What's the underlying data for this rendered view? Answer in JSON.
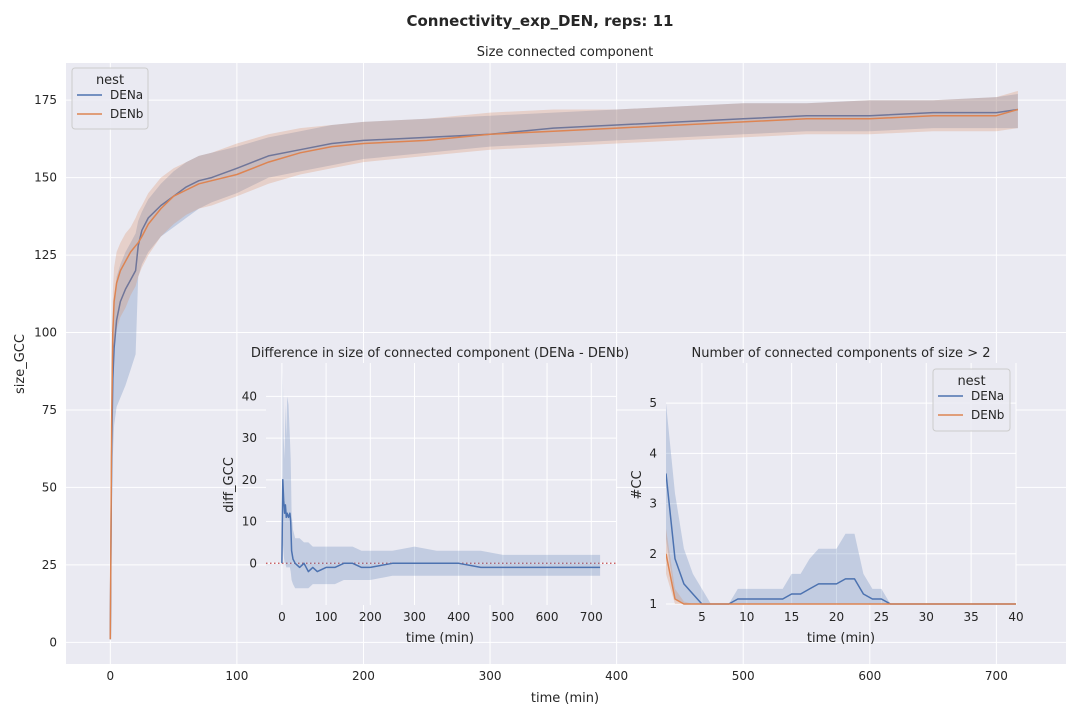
{
  "figure": {
    "suptitle": "Connectivity_exp_DEN, reps: 11"
  },
  "colors": {
    "DENa": "#4c72b0",
    "DENb": "#dd8452",
    "background": "#eaeaf2",
    "grid": "#ffffff"
  },
  "chart_data": [
    {
      "id": "main",
      "type": "line",
      "title": "Size connected component",
      "xlabel": "time (min)",
      "ylabel": "size_GCC",
      "xlim": [
        -35,
        755
      ],
      "ylim": [
        -7,
        187
      ],
      "xticks": [
        0,
        100,
        200,
        300,
        400,
        500,
        600,
        700
      ],
      "yticks": [
        0,
        25,
        50,
        75,
        100,
        125,
        150,
        175
      ],
      "grid": true,
      "legend": {
        "title": "nest",
        "placement": "upper-left",
        "entries": [
          "DENa",
          "DENb"
        ]
      },
      "series": [
        {
          "name": "DENa",
          "x": [
            0,
            1,
            2,
            3,
            5,
            8,
            12,
            16,
            20,
            22,
            25,
            30,
            40,
            50,
            60,
            70,
            80,
            100,
            125,
            150,
            175,
            200,
            250,
            300,
            350,
            400,
            450,
            500,
            550,
            600,
            650,
            700,
            717
          ],
          "y": [
            1,
            60,
            85,
            95,
            104,
            110,
            114,
            117,
            120,
            128,
            133,
            137,
            141,
            144,
            147,
            149,
            150,
            153,
            157,
            159,
            161,
            162,
            163,
            164,
            166,
            167,
            168,
            169,
            170,
            170,
            171,
            171,
            172
          ],
          "lower": [
            1,
            40,
            60,
            70,
            76,
            79,
            83,
            88,
            93,
            118,
            122,
            126,
            131,
            134,
            137,
            140,
            142,
            145,
            150,
            152,
            154,
            156,
            158,
            160,
            161,
            162,
            163,
            164,
            165,
            165,
            166,
            166,
            166
          ],
          "upper": [
            1,
            78,
            102,
            110,
            118,
            122,
            126,
            129,
            132,
            136,
            139,
            143,
            148,
            152,
            155,
            157,
            158,
            160,
            163,
            165,
            167,
            168,
            169,
            170,
            171,
            172,
            173,
            174,
            174,
            175,
            175,
            176,
            177
          ]
        },
        {
          "name": "DENb",
          "x": [
            0,
            1,
            2,
            3,
            5,
            8,
            12,
            16,
            20,
            22,
            25,
            30,
            40,
            50,
            60,
            70,
            80,
            100,
            125,
            150,
            175,
            200,
            250,
            300,
            350,
            400,
            450,
            500,
            550,
            600,
            650,
            700,
            717
          ],
          "y": [
            1,
            70,
            100,
            110,
            116,
            120,
            123,
            126,
            128,
            129,
            131,
            135,
            140,
            144,
            146,
            148,
            149,
            151,
            155,
            158,
            160,
            161,
            162,
            164,
            165,
            166,
            167,
            168,
            169,
            169,
            170,
            170,
            172
          ],
          "lower": [
            1,
            55,
            85,
            95,
            101,
            105,
            108,
            112,
            115,
            118,
            121,
            125,
            131,
            135,
            138,
            140,
            141,
            144,
            148,
            151,
            153,
            155,
            157,
            159,
            160,
            161,
            162,
            163,
            164,
            164,
            165,
            165,
            166
          ],
          "upper": [
            1,
            85,
            113,
            121,
            126,
            129,
            132,
            134,
            137,
            139,
            141,
            145,
            150,
            153,
            155,
            157,
            158,
            161,
            164,
            166,
            167,
            168,
            169,
            171,
            172,
            172,
            173,
            174,
            174,
            175,
            175,
            176,
            178
          ]
        }
      ]
    },
    {
      "id": "diff",
      "type": "line",
      "title": "Difference in size of connected component (DENa - DENb)",
      "xlabel": "time (min)",
      "ylabel": "diff_GCC",
      "xlim": [
        -36,
        756
      ],
      "ylim": [
        -10,
        48
      ],
      "xticks": [
        0,
        100,
        200,
        300,
        400,
        500,
        600,
        700
      ],
      "yticks": [
        0,
        10,
        20,
        30,
        40
      ],
      "grid": true,
      "zero_line": {
        "y": 0,
        "color": "#c44e52",
        "style": "dotted"
      },
      "series": [
        {
          "name": "DENa",
          "x": [
            0,
            2,
            4,
            6,
            8,
            10,
            12,
            15,
            18,
            20,
            22,
            25,
            30,
            40,
            50,
            60,
            70,
            80,
            100,
            120,
            140,
            160,
            180,
            200,
            250,
            300,
            350,
            400,
            450,
            500,
            550,
            600,
            650,
            700,
            720
          ],
          "y": [
            0,
            20,
            15,
            12,
            14,
            11,
            12,
            11,
            12,
            10,
            3,
            1,
            0,
            -1,
            0,
            -2,
            -1,
            -2,
            -1,
            -1,
            0,
            0,
            -1,
            -1,
            0,
            0,
            0,
            0,
            -1,
            -1,
            -1,
            -1,
            -1,
            -1,
            -1
          ],
          "lower": [
            0,
            5,
            2,
            0,
            0,
            -1,
            -1,
            -1,
            -1,
            -2,
            -4,
            -5,
            -6,
            -6,
            -6,
            -6,
            -5,
            -5,
            -5,
            -5,
            -4,
            -4,
            -4,
            -4,
            -3,
            -3,
            -3,
            -3,
            -3,
            -3,
            -3,
            -3,
            -3,
            -3,
            -3
          ],
          "upper": [
            0,
            46,
            30,
            25,
            38,
            30,
            40,
            38,
            30,
            25,
            12,
            8,
            6,
            6,
            5,
            5,
            4,
            4,
            4,
            4,
            4,
            4,
            3,
            3,
            3,
            4,
            3,
            3,
            3,
            2,
            2,
            2,
            2,
            2,
            2
          ]
        }
      ]
    },
    {
      "id": "count",
      "type": "line",
      "title": "Number of connected components of size > 2",
      "xlabel": "time (min)",
      "ylabel": "#CC",
      "xlim": [
        1,
        40
      ],
      "ylim": [
        0.98,
        5.8
      ],
      "xticks": [
        5,
        10,
        15,
        20,
        25,
        30,
        35,
        40
      ],
      "yticks": [
        1,
        2,
        3,
        4,
        5
      ],
      "grid": true,
      "legend": {
        "title": "nest",
        "placement": "upper-right",
        "entries": [
          "DENa",
          "DENb"
        ]
      },
      "series": [
        {
          "name": "DENa",
          "x": [
            1,
            2,
            3,
            4,
            5,
            6,
            7,
            8,
            9,
            10,
            11,
            12,
            13,
            14,
            15,
            16,
            17,
            18,
            19,
            20,
            21,
            22,
            23,
            24,
            25,
            26,
            27,
            28,
            29,
            30,
            31,
            32,
            33,
            34,
            35,
            36,
            37,
            38,
            39,
            40
          ],
          "y": [
            3.6,
            1.9,
            1.4,
            1.2,
            1.0,
            1.0,
            1.0,
            1.0,
            1.1,
            1.1,
            1.1,
            1.1,
            1.1,
            1.1,
            1.2,
            1.2,
            1.3,
            1.4,
            1.4,
            1.4,
            1.5,
            1.5,
            1.2,
            1.1,
            1.1,
            1.0,
            1.0,
            1.0,
            1.0,
            1.0,
            1.0,
            1.0,
            1.0,
            1.0,
            1.0,
            1.0,
            1.0,
            1.0,
            1.0,
            1.0
          ],
          "lower": [
            2.3,
            1.1,
            1.0,
            1.0,
            1.0,
            1.0,
            1.0,
            1.0,
            1.0,
            1.0,
            1.0,
            1.0,
            1.0,
            1.0,
            1.0,
            1.0,
            1.0,
            1.0,
            1.0,
            1.0,
            1.0,
            1.0,
            1.0,
            1.0,
            1.0,
            1.0,
            1.0,
            1.0,
            1.0,
            1.0,
            1.0,
            1.0,
            1.0,
            1.0,
            1.0,
            1.0,
            1.0,
            1.0,
            1.0,
            1.0
          ],
          "upper": [
            5.0,
            3.2,
            2.1,
            1.6,
            1.3,
            1.0,
            1.0,
            1.0,
            1.3,
            1.3,
            1.3,
            1.3,
            1.3,
            1.3,
            1.6,
            1.6,
            1.9,
            2.1,
            2.1,
            2.1,
            2.4,
            2.4,
            1.6,
            1.3,
            1.3,
            1.0,
            1.0,
            1.0,
            1.0,
            1.0,
            1.0,
            1.0,
            1.0,
            1.0,
            1.0,
            1.0,
            1.0,
            1.0,
            1.0,
            1.0
          ]
        },
        {
          "name": "DENb",
          "x": [
            1,
            2,
            3,
            4,
            5,
            6,
            7,
            8,
            9,
            10,
            15,
            20,
            25,
            30,
            35,
            40
          ],
          "y": [
            2.0,
            1.1,
            1.0,
            1.0,
            1.0,
            1.0,
            1.0,
            1.0,
            1.0,
            1.0,
            1.0,
            1.0,
            1.0,
            1.0,
            1.0,
            1.0
          ],
          "lower": [
            1.6,
            1.0,
            1.0,
            1.0,
            1.0,
            1.0,
            1.0,
            1.0,
            1.0,
            1.0,
            1.0,
            1.0,
            1.0,
            1.0,
            1.0,
            1.0
          ],
          "upper": [
            2.5,
            1.3,
            1.05,
            1.0,
            1.0,
            1.0,
            1.0,
            1.0,
            1.0,
            1.0,
            1.0,
            1.0,
            1.0,
            1.0,
            1.0,
            1.0
          ]
        }
      ]
    }
  ]
}
